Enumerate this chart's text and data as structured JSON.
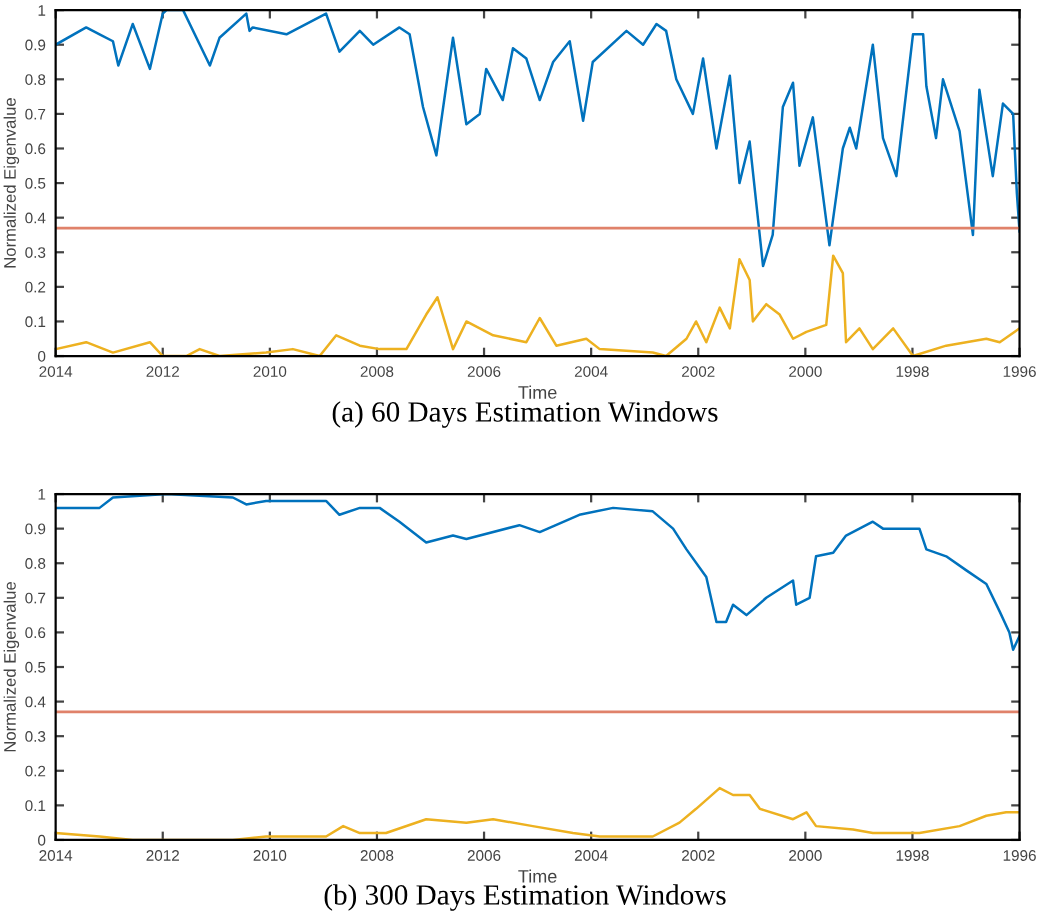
{
  "chart_data": [
    {
      "type": "line",
      "xlabel": "Time",
      "ylabel": "Normalized Eigenvalue",
      "annotations": [
        "(a) 60 Days Estimation Windows"
      ],
      "xlim": [
        2014,
        1996
      ],
      "xticks": [
        2014,
        2012,
        2010,
        2008,
        2006,
        2004,
        2002,
        2000,
        1998,
        1996
      ],
      "ylim": [
        0,
        1
      ],
      "yticks": [
        0,
        0.1,
        0.2,
        0.3,
        0.4,
        0.5,
        0.6,
        0.7,
        0.8,
        0.9,
        1
      ],
      "ref_lines": [
        {
          "axis": "y",
          "value": 0.37,
          "color": "#e0826a"
        }
      ],
      "series": [
        {
          "color": "#0072bd",
          "x": [
            2014,
            2013.43,
            2013.18,
            2012.93,
            2012.83,
            2012.56,
            2012.24,
            2012.0,
            2011.93,
            2011.62,
            2011.12,
            2010.94,
            2010.44,
            2010.38,
            2010.32,
            2009.69,
            2008.95,
            2008.7,
            2008.32,
            2008.07,
            2007.58,
            2007.39,
            2007.14,
            2006.89,
            2006.58,
            2006.33,
            2006.08,
            2005.96,
            2005.65,
            2005.46,
            2005.21,
            2004.96,
            2004.71,
            2004.4,
            2004.15,
            2003.97,
            2003.34,
            2003.03,
            2002.78,
            2002.6,
            2002.41,
            2002.1,
            2001.91,
            2001.66,
            2001.41,
            2001.23,
            2001.04,
            2000.79,
            2000.61,
            2000.42,
            2000.23,
            2000.11,
            1999.86,
            1999.55,
            1999.3,
            1999.17,
            1999.05,
            1998.74,
            1998.55,
            1998.3,
            1997.99,
            1997.8,
            1997.74,
            1997.56,
            1997.43,
            1997.12,
            1996.87,
            1996.75,
            1996.5,
            1996.31,
            1996.12,
            1996.05,
            1996.0
          ],
          "values": [
            0.9,
            0.95,
            0.93,
            0.91,
            0.84,
            0.96,
            0.83,
            0.99,
            1.0,
            1.0,
            0.84,
            0.92,
            0.99,
            0.94,
            0.95,
            0.93,
            0.99,
            0.88,
            0.94,
            0.9,
            0.95,
            0.93,
            0.72,
            0.58,
            0.92,
            0.67,
            0.7,
            0.83,
            0.74,
            0.89,
            0.86,
            0.74,
            0.85,
            0.91,
            0.68,
            0.85,
            0.94,
            0.9,
            0.96,
            0.94,
            0.8,
            0.7,
            0.86,
            0.6,
            0.81,
            0.5,
            0.62,
            0.26,
            0.35,
            0.72,
            0.79,
            0.55,
            0.69,
            0.32,
            0.6,
            0.66,
            0.6,
            0.9,
            0.63,
            0.52,
            0.93,
            0.93,
            0.78,
            0.63,
            0.8,
            0.65,
            0.35,
            0.77,
            0.52,
            0.73,
            0.7,
            0.47,
            0.36
          ]
        },
        {
          "color": "#edb120",
          "x": [
            2014,
            2013.43,
            2012.93,
            2012.24,
            2012.0,
            2011.56,
            2011.31,
            2010.94,
            2010.07,
            2009.57,
            2009.07,
            2008.76,
            2008.32,
            2007.95,
            2007.45,
            2007.08,
            2006.87,
            2006.58,
            2006.33,
            2006.08,
            2005.83,
            2005.21,
            2004.96,
            2004.65,
            2004.09,
            2003.84,
            2002.85,
            2002.6,
            2002.22,
            2002.04,
            2001.85,
            2001.6,
            2001.41,
            2001.23,
            2001.04,
            2000.98,
            2000.73,
            2000.48,
            2000.23,
            1999.98,
            1999.61,
            1999.48,
            1999.3,
            1999.24,
            1998.99,
            1998.74,
            1998.36,
            1997.99,
            1997.37,
            1996.62,
            1996.37,
            1996.0
          ],
          "values": [
            0.02,
            0.04,
            0.01,
            0.04,
            0.0,
            0.0,
            0.02,
            0.0,
            0.01,
            0.02,
            0.0,
            0.06,
            0.03,
            0.02,
            0.02,
            0.12,
            0.17,
            0.02,
            0.1,
            0.08,
            0.06,
            0.04,
            0.11,
            0.03,
            0.05,
            0.02,
            0.01,
            0.0,
            0.05,
            0.1,
            0.04,
            0.14,
            0.08,
            0.28,
            0.22,
            0.1,
            0.15,
            0.12,
            0.05,
            0.07,
            0.09,
            0.29,
            0.24,
            0.04,
            0.08,
            0.02,
            0.08,
            0.0,
            0.03,
            0.05,
            0.04,
            0.08
          ]
        }
      ]
    },
    {
      "type": "line",
      "xlabel": "Time",
      "ylabel": "Normalized Eigenvalue",
      "annotations": [
        "(b) 300 Days Estimation Windows"
      ],
      "xlim": [
        2014,
        1996
      ],
      "xticks": [
        2014,
        2012,
        2010,
        2008,
        2006,
        2004,
        2002,
        2000,
        1998,
        1996
      ],
      "ylim": [
        0,
        1
      ],
      "yticks": [
        0,
        0.1,
        0.2,
        0.3,
        0.4,
        0.5,
        0.6,
        0.7,
        0.8,
        0.9,
        1
      ],
      "ref_lines": [
        {
          "axis": "y",
          "value": 0.37,
          "color": "#e0826a"
        }
      ],
      "series": [
        {
          "color": "#0072bd",
          "x": [
            2014,
            2013.18,
            2012.93,
            2011.93,
            2010.69,
            2010.44,
            2010.07,
            2008.95,
            2008.7,
            2008.32,
            2007.95,
            2007.58,
            2007.08,
            2006.58,
            2006.33,
            2005.34,
            2004.96,
            2004.22,
            2003.59,
            2002.85,
            2002.47,
            2002.22,
            2001.85,
            2001.66,
            2001.48,
            2001.35,
            2001.1,
            2000.73,
            2000.23,
            2000.17,
            1999.92,
            1999.8,
            1999.48,
            1999.24,
            1998.74,
            1998.55,
            1997.87,
            1997.74,
            1997.37,
            1997.0,
            1996.62,
            1996.37,
            1996.19,
            1996.12,
            1996.0
          ],
          "values": [
            0.96,
            0.96,
            0.99,
            1.0,
            0.99,
            0.97,
            0.98,
            0.98,
            0.94,
            0.96,
            0.96,
            0.92,
            0.86,
            0.88,
            0.87,
            0.91,
            0.89,
            0.94,
            0.96,
            0.95,
            0.9,
            0.84,
            0.76,
            0.63,
            0.63,
            0.68,
            0.65,
            0.7,
            0.75,
            0.68,
            0.7,
            0.82,
            0.83,
            0.88,
            0.92,
            0.9,
            0.9,
            0.84,
            0.82,
            0.78,
            0.74,
            0.66,
            0.6,
            0.55,
            0.59
          ]
        },
        {
          "color": "#edb120",
          "x": [
            2014,
            2013.18,
            2012.56,
            2010.69,
            2010.07,
            2008.95,
            2008.63,
            2008.32,
            2007.83,
            2007.08,
            2006.33,
            2005.83,
            2005.09,
            2004.34,
            2003.84,
            2002.85,
            2002.35,
            2002.04,
            2001.6,
            2001.35,
            2001.04,
            2000.85,
            2000.23,
            1999.98,
            1999.8,
            1999.11,
            1998.74,
            1997.87,
            1997.12,
            1996.62,
            1996.25,
            1996.0
          ],
          "values": [
            0.02,
            0.01,
            0.0,
            0.0,
            0.01,
            0.01,
            0.04,
            0.02,
            0.02,
            0.06,
            0.05,
            0.06,
            0.04,
            0.02,
            0.01,
            0.01,
            0.05,
            0.09,
            0.15,
            0.13,
            0.13,
            0.09,
            0.06,
            0.08,
            0.04,
            0.03,
            0.02,
            0.02,
            0.04,
            0.07,
            0.08,
            0.08
          ]
        }
      ]
    }
  ]
}
